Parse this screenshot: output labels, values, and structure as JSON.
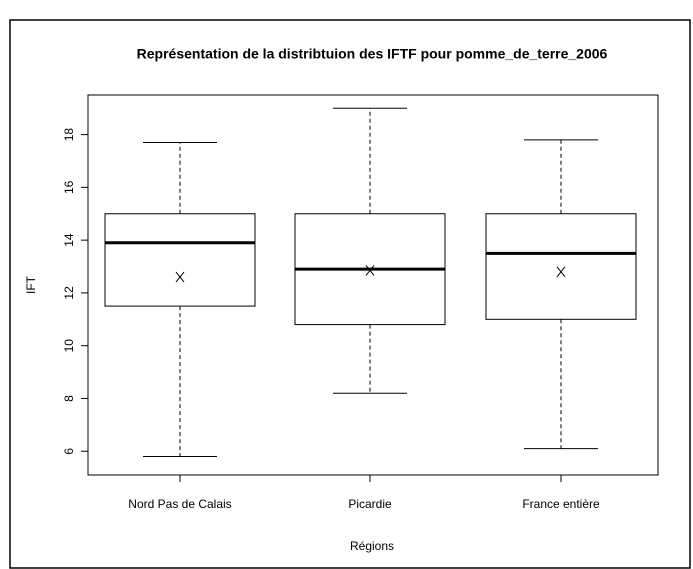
{
  "chart_data": {
    "type": "box",
    "title": "Représentation de la distribtuion des IFTF pour pomme_de_terre_2006",
    "xlabel": "Régions",
    "ylabel": "IFT",
    "categories": [
      "Nord Pas de Calais",
      "Picardie",
      "France entière"
    ],
    "min": [
      5.8,
      8.2,
      6.1
    ],
    "q1": [
      11.5,
      10.8,
      11.0
    ],
    "median": [
      13.9,
      12.9,
      13.5
    ],
    "q3": [
      15.0,
      15.0,
      15.0
    ],
    "max": [
      17.7,
      19.0,
      17.8
    ],
    "mean": [
      12.6,
      12.85,
      12.8
    ],
    "color": "#000000",
    "ylim": [
      5.1,
      19.5
    ],
    "yticks": [
      6,
      8,
      10,
      12,
      14,
      16,
      18
    ]
  }
}
